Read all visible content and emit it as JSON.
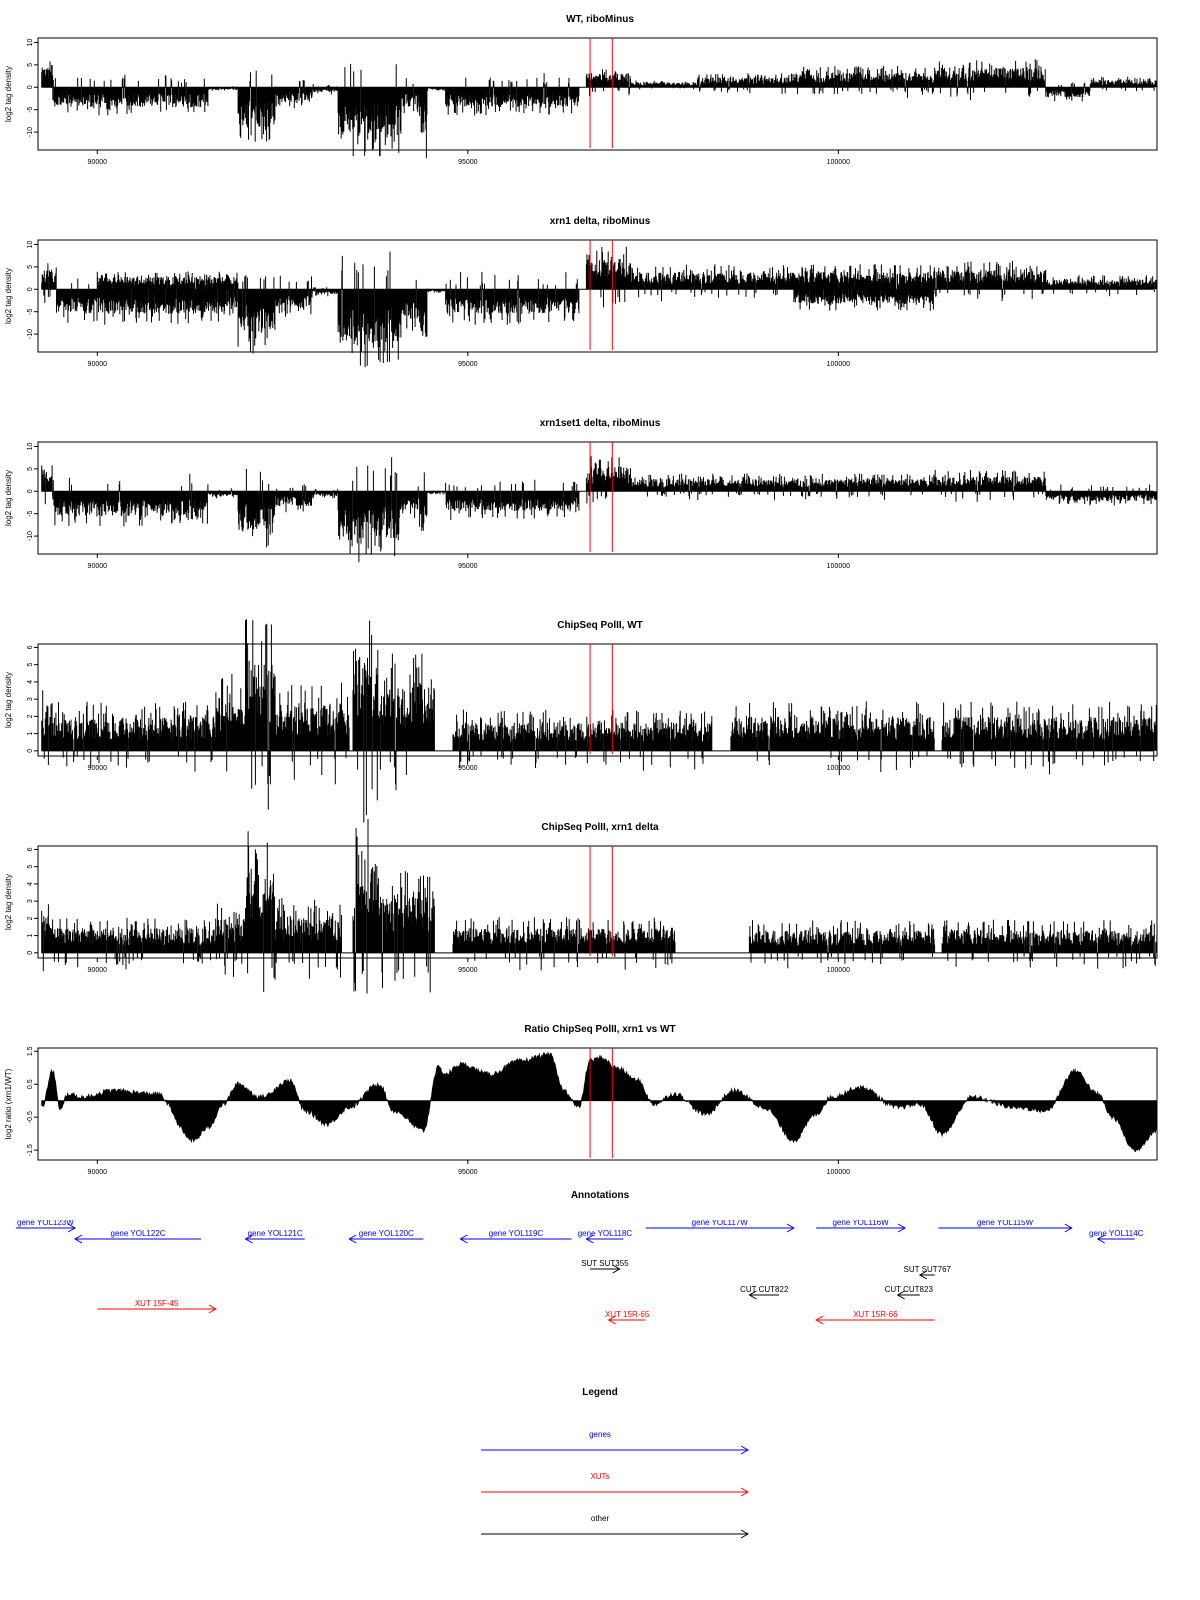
{
  "chart_data": [
    {
      "type": "bar",
      "title": "WT, riboMinus",
      "ylabel": "log2 tag density",
      "xlim": [
        89200,
        104300
      ],
      "ylim": [
        -14,
        11
      ],
      "yticks": [
        -10,
        -5,
        0,
        5,
        10
      ],
      "xticks": [
        90000,
        95000,
        100000
      ],
      "markers": [
        96650,
        96950
      ],
      "regions": [
        {
          "from": 89250,
          "to": 89400,
          "level": 4
        },
        {
          "from": 89400,
          "to": 91500,
          "level": -4
        },
        {
          "from": 91500,
          "to": 91900,
          "level": -0.5
        },
        {
          "from": 91900,
          "to": 92400,
          "level": -8
        },
        {
          "from": 92400,
          "to": 92900,
          "level": -3
        },
        {
          "from": 92900,
          "to": 93250,
          "level": -1
        },
        {
          "from": 93250,
          "to": 94100,
          "level": -10
        },
        {
          "from": 94100,
          "to": 94350,
          "level": -4
        },
        {
          "from": 94350,
          "to": 94450,
          "level": -10
        },
        {
          "from": 94450,
          "to": 94700,
          "level": -0.5
        },
        {
          "from": 94700,
          "to": 96500,
          "level": -4
        },
        {
          "from": 96600,
          "to": 97200,
          "level": 3
        },
        {
          "from": 97200,
          "to": 98100,
          "level": 1
        },
        {
          "from": 98100,
          "to": 99400,
          "level": 2
        },
        {
          "from": 99400,
          "to": 101300,
          "level": 3
        },
        {
          "from": 101300,
          "to": 102800,
          "level": 4
        },
        {
          "from": 102800,
          "to": 103400,
          "level": -2
        },
        {
          "from": 103400,
          "to": 104300,
          "level": 1.5
        }
      ]
    },
    {
      "type": "bar",
      "title": "xrn1 delta, riboMinus",
      "ylabel": "log2 tag density",
      "xlim": [
        89200,
        104300
      ],
      "ylim": [
        -14,
        11
      ],
      "yticks": [
        -10,
        -5,
        0,
        5,
        10
      ],
      "xticks": [
        90000,
        95000,
        100000
      ],
      "markers": [
        96650,
        96950
      ],
      "regions": [
        {
          "from": 89250,
          "to": 89450,
          "level": 4
        },
        {
          "from": 89450,
          "to": 91900,
          "level": -5
        },
        {
          "from": 90000,
          "to": 91900,
          "level": 2.5
        },
        {
          "from": 91900,
          "to": 92400,
          "level": -9
        },
        {
          "from": 92400,
          "to": 92900,
          "level": -4
        },
        {
          "from": 92900,
          "to": 93250,
          "level": -1
        },
        {
          "from": 93250,
          "to": 94100,
          "level": -11
        },
        {
          "from": 94100,
          "to": 94350,
          "level": -6
        },
        {
          "from": 94350,
          "to": 94450,
          "level": -10
        },
        {
          "from": 94450,
          "to": 94700,
          "level": -0.5
        },
        {
          "from": 94700,
          "to": 96500,
          "level": -5
        },
        {
          "from": 96600,
          "to": 97200,
          "level": 6
        },
        {
          "from": 97200,
          "to": 101300,
          "level": 3.5
        },
        {
          "from": 99400,
          "to": 101300,
          "level": -3
        },
        {
          "from": 101300,
          "to": 102800,
          "level": 4
        },
        {
          "from": 102800,
          "to": 104300,
          "level": 2
        }
      ]
    },
    {
      "type": "bar",
      "title": "xrn1set1 delta, riboMinus",
      "ylabel": "log2 tag density",
      "xlim": [
        89200,
        104300
      ],
      "ylim": [
        -14,
        11
      ],
      "yticks": [
        -10,
        -5,
        0,
        5,
        10
      ],
      "xticks": [
        90000,
        95000,
        100000
      ],
      "markers": [
        96650,
        96950
      ],
      "regions": [
        {
          "from": 89250,
          "to": 89400,
          "level": 4
        },
        {
          "from": 89400,
          "to": 91500,
          "level": -5
        },
        {
          "from": 91500,
          "to": 91900,
          "level": -1
        },
        {
          "from": 91900,
          "to": 92400,
          "level": -8
        },
        {
          "from": 92400,
          "to": 92900,
          "level": -3
        },
        {
          "from": 92900,
          "to": 93250,
          "level": -1
        },
        {
          "from": 93250,
          "to": 94100,
          "level": -10
        },
        {
          "from": 94100,
          "to": 94350,
          "level": -4
        },
        {
          "from": 94350,
          "to": 94450,
          "level": -9
        },
        {
          "from": 94450,
          "to": 94700,
          "level": -0.5
        },
        {
          "from": 94700,
          "to": 96500,
          "level": -4
        },
        {
          "from": 96600,
          "to": 97200,
          "level": 5
        },
        {
          "from": 97200,
          "to": 101300,
          "level": 2.5
        },
        {
          "from": 101300,
          "to": 102800,
          "level": 3
        },
        {
          "from": 102800,
          "to": 104300,
          "level": -2
        }
      ]
    },
    {
      "type": "bar",
      "title": "ChipSeq PolII, WT",
      "ylabel": "log2 tag density",
      "xlim": [
        89200,
        104300
      ],
      "ylim": [
        -0.3,
        6.2
      ],
      "yticks": [
        0,
        1,
        2,
        3,
        4,
        5,
        6
      ],
      "xticks": [
        90000,
        95000,
        100000
      ],
      "markers": [
        96650,
        96950
      ],
      "regions": [
        {
          "from": 89250,
          "to": 89400,
          "level": 2.5
        },
        {
          "from": 89400,
          "to": 91600,
          "level": 1.8
        },
        {
          "from": 91600,
          "to": 92000,
          "level": 2.8
        },
        {
          "from": 92000,
          "to": 92400,
          "level": 4.8
        },
        {
          "from": 92400,
          "to": 93300,
          "level": 2.5
        },
        {
          "from": 93300,
          "to": 93400,
          "level": 2
        },
        {
          "from": 93450,
          "to": 93800,
          "level": 5.6
        },
        {
          "from": 93800,
          "to": 94550,
          "level": 3.6
        },
        {
          "from": 94800,
          "to": 98300,
          "level": 1.5
        },
        {
          "from": 98300,
          "to": 98550,
          "level": 0
        },
        {
          "from": 98550,
          "to": 101300,
          "level": 1.8
        },
        {
          "from": 101400,
          "to": 104300,
          "level": 1.8
        }
      ]
    },
    {
      "type": "bar",
      "title": "ChipSeq PolII, xrn1 delta",
      "ylabel": "log2 tag density",
      "xlim": [
        89200,
        104300
      ],
      "ylim": [
        -0.3,
        6.2
      ],
      "yticks": [
        0,
        1,
        2,
        3,
        4,
        5,
        6
      ],
      "xticks": [
        90000,
        95000,
        100000
      ],
      "markers": [
        96650,
        96950
      ],
      "regions": [
        {
          "from": 89250,
          "to": 89400,
          "level": 2
        },
        {
          "from": 89400,
          "to": 91600,
          "level": 1.3
        },
        {
          "from": 91600,
          "to": 92000,
          "level": 1.8
        },
        {
          "from": 92000,
          "to": 92400,
          "level": 4.5
        },
        {
          "from": 92400,
          "to": 93300,
          "level": 2
        },
        {
          "from": 93450,
          "to": 93800,
          "level": 5
        },
        {
          "from": 93800,
          "to": 94550,
          "level": 3
        },
        {
          "from": 94800,
          "to": 97800,
          "level": 1.3
        },
        {
          "from": 98800,
          "to": 101300,
          "level": 1.2
        },
        {
          "from": 101400,
          "to": 104300,
          "level": 1.2
        }
      ]
    },
    {
      "type": "area",
      "title": "Ratio ChipSeq PolII, xrn1 vs WT",
      "ylabel": "log2 ratio (xrn1/WT)",
      "xlim": [
        89200,
        104300
      ],
      "ylim": [
        -1.8,
        1.6
      ],
      "yticks": [
        -1.5,
        -0.5,
        0.5,
        1.5
      ],
      "xticks": [
        90000,
        95000,
        100000
      ],
      "markers": [
        96650,
        96950
      ],
      "x": [
        89250,
        89400,
        89500,
        89600,
        89800,
        90200,
        90800,
        91300,
        91500,
        91700,
        91900,
        92200,
        92600,
        92800,
        93100,
        93400,
        93800,
        94000,
        94400,
        94600,
        94700,
        94900,
        95300,
        95700,
        96100,
        96300,
        96500,
        96650,
        96800,
        97000,
        97300,
        97500,
        97800,
        98200,
        98600,
        99000,
        99400,
        99700,
        99900,
        100300,
        100800,
        101100,
        101400,
        101800,
        102400,
        102800,
        103200,
        103500,
        103700,
        104000,
        104300
      ],
      "y": [
        -0.2,
        0.9,
        -0.3,
        0.2,
        0.1,
        0.3,
        0.2,
        -1.2,
        -0.8,
        -0.1,
        0.5,
        0.1,
        0.6,
        -0.3,
        -0.7,
        -0.2,
        0.5,
        -0.3,
        -0.9,
        1.0,
        0.8,
        1.1,
        0.8,
        1.2,
        1.4,
        0.3,
        -0.2,
        1.2,
        1.3,
        1.0,
        0.6,
        -0.1,
        0.2,
        -0.4,
        0.3,
        -0.2,
        -1.2,
        -0.4,
        0.1,
        0.4,
        -0.2,
        -0.1,
        -1.0,
        0.1,
        -0.2,
        -0.3,
        0.9,
        0.2,
        -0.5,
        -1.5,
        -0.9
      ]
    }
  ],
  "annotations": {
    "title": "Annotations",
    "items": [
      {
        "label": "gene YOL123W",
        "start": 88900,
        "end": 89700,
        "dir": "right",
        "row": 0,
        "color": "#0000ff"
      },
      {
        "label": "gene YOL122C",
        "start": 89700,
        "end": 91400,
        "dir": "left",
        "row": 1,
        "color": "#0000ff"
      },
      {
        "label": "gene YOL121C",
        "start": 92000,
        "end": 92800,
        "dir": "left",
        "row": 1,
        "color": "#0000ff"
      },
      {
        "label": "gene YOL120C",
        "start": 93400,
        "end": 94400,
        "dir": "left",
        "row": 1,
        "color": "#0000ff"
      },
      {
        "label": "gene YOL119C",
        "start": 94900,
        "end": 96400,
        "dir": "left",
        "row": 1,
        "color": "#0000ff"
      },
      {
        "label": "gene YOL118C",
        "start": 96600,
        "end": 97100,
        "dir": "left",
        "row": 1,
        "color": "#0000ff"
      },
      {
        "label": "gene YOL117W",
        "start": 97400,
        "end": 99400,
        "dir": "right",
        "row": 0,
        "color": "#0000ff"
      },
      {
        "label": "gene YOL116W",
        "start": 99700,
        "end": 100900,
        "dir": "right",
        "row": 0,
        "color": "#0000ff"
      },
      {
        "label": "gene YOL115W",
        "start": 101350,
        "end": 103150,
        "dir": "right",
        "row": 0,
        "color": "#0000ff"
      },
      {
        "label": "gene YOL114C",
        "start": 103500,
        "end": 104000,
        "dir": "left",
        "row": 1,
        "color": "#0000ff"
      },
      {
        "label": "SUT SUT355",
        "start": 96650,
        "end": 97050,
        "dir": "right",
        "row": 2,
        "color": "#000000"
      },
      {
        "label": "SUT SUT767",
        "start": 101100,
        "end": 101300,
        "dir": "left",
        "row": 3,
        "color": "#000000"
      },
      {
        "label": "CUT CUT822",
        "start": 98800,
        "end": 99200,
        "dir": "left",
        "row": 4,
        "color": "#000000"
      },
      {
        "label": "CUT CUT823",
        "start": 100800,
        "end": 101100,
        "dir": "left",
        "row": 4,
        "color": "#000000"
      },
      {
        "label": "XUT 15F-45",
        "start": 90000,
        "end": 91600,
        "dir": "right",
        "row": 5,
        "color": "#ff0000"
      },
      {
        "label": "XUT 15R-65",
        "start": 96900,
        "end": 97400,
        "dir": "left",
        "row": 6,
        "color": "#ff0000"
      },
      {
        "label": "XUT 15R-66",
        "start": 99700,
        "end": 101300,
        "dir": "left",
        "row": 6,
        "color": "#ff0000"
      }
    ]
  },
  "legend": {
    "title": "Legend",
    "items": [
      {
        "label": "genes",
        "color": "#0000ff"
      },
      {
        "label": "XUTs",
        "color": "#ff0000"
      },
      {
        "label": "other",
        "color": "#000000"
      }
    ]
  }
}
